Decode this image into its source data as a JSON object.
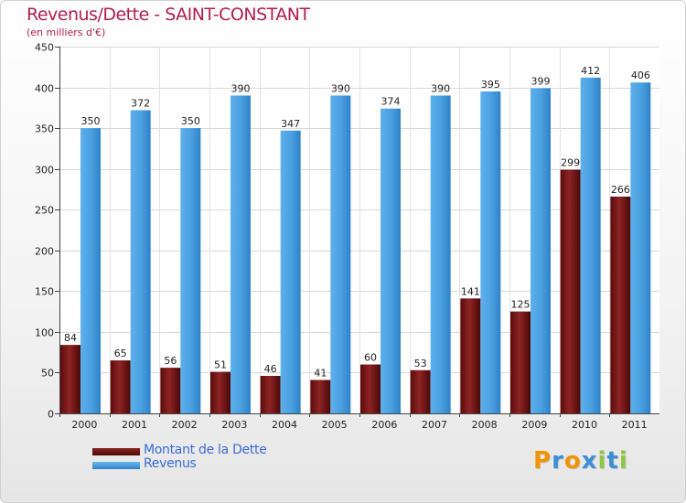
{
  "title": "Revenus/Dette - SAINT-CONSTANT",
  "subtitle": "(en milliers d'€)",
  "logo": {
    "letters": [
      "P",
      "r",
      "o",
      "x",
      "i",
      "t",
      "i"
    ],
    "colors": [
      "#f29400",
      "#3a8fd6",
      "#f29400",
      "#3a8fd6",
      "#8dc63f",
      "#3a8fd6",
      "#8dc63f"
    ]
  },
  "chart_data": {
    "type": "bar",
    "categories": [
      "2000",
      "2001",
      "2002",
      "2003",
      "2004",
      "2005",
      "2006",
      "2007",
      "2008",
      "2009",
      "2010",
      "2011"
    ],
    "series": [
      {
        "name": "Montant de la Dette",
        "values": [
          84,
          65,
          56,
          51,
          46,
          41,
          60,
          53,
          141,
          125,
          299,
          266
        ],
        "color": "#7a1515"
      },
      {
        "name": "Revenus",
        "values": [
          350,
          372,
          350,
          390,
          347,
          390,
          374,
          390,
          395,
          399,
          412,
          406
        ],
        "color": "#4a9fe0"
      }
    ],
    "yticks": [
      "0",
      "50",
      "100",
      "150",
      "200",
      "250",
      "300",
      "350",
      "400",
      "450"
    ],
    "ylim": [
      0,
      450
    ],
    "grid": true,
    "legend": "bottom-left"
  }
}
